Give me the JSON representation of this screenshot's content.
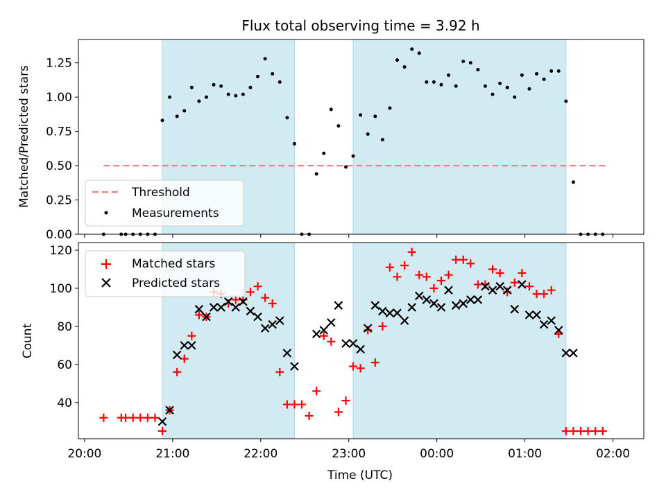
{
  "chart_data": [
    {
      "type": "scatter",
      "title": "Flux total observing time = 3.92 h",
      "xlabel": "",
      "ylabel": "Matched/Predicted stars",
      "ylim": [
        0,
        1.42
      ],
      "xlim_hours": [
        19.93,
        26.35
      ],
      "x_ticks": [
        "20:00",
        "21:00",
        "22:00",
        "23:00",
        "00:00",
        "01:00",
        "02:00"
      ],
      "y_ticks": [
        "0.00",
        "0.25",
        "0.50",
        "0.75",
        "1.00",
        "1.25"
      ],
      "shaded_spans": [
        {
          "start": "20:53",
          "end": "22:23"
        },
        {
          "start": "23:03",
          "end": "01:28"
        }
      ],
      "shade_color": "#add8e6",
      "threshold": {
        "name": "Threshold",
        "value": 0.5,
        "x_start": "20:13",
        "x_end": "01:56",
        "color": "#f08080"
      },
      "legend": {
        "position": "lower-left",
        "entries": [
          "Threshold",
          "Measurements"
        ]
      },
      "series": [
        {
          "name": "Measurements",
          "color": "#000000",
          "marker": "dot",
          "x": [
            "20:13",
            "20:25",
            "20:28",
            "20:33",
            "20:38",
            "20:43",
            "20:48",
            "20:53",
            "20:58",
            "21:03",
            "21:08",
            "21:13",
            "21:18",
            "21:23",
            "21:28",
            "21:33",
            "21:38",
            "21:43",
            "21:48",
            "21:53",
            "21:58",
            "22:03",
            "22:08",
            "22:13",
            "22:18",
            "22:23",
            "22:28",
            "22:33",
            "22:38",
            "22:43",
            "22:48",
            "22:53",
            "22:58",
            "23:03",
            "23:08",
            "23:13",
            "23:18",
            "23:23",
            "23:28",
            "23:33",
            "23:38",
            "23:43",
            "23:48",
            "23:53",
            "23:58",
            "00:03",
            "00:08",
            "00:13",
            "00:18",
            "00:23",
            "00:28",
            "00:33",
            "00:38",
            "00:43",
            "00:48",
            "00:53",
            "00:58",
            "01:03",
            "01:08",
            "01:13",
            "01:18",
            "01:23",
            "01:28",
            "01:33",
            "01:38",
            "01:43",
            "01:48",
            "01:53"
          ],
          "y": [
            0.0,
            0.0,
            0.0,
            0.0,
            0.0,
            0.0,
            0.0,
            0.83,
            1.0,
            0.86,
            0.9,
            1.07,
            0.97,
            1.0,
            1.09,
            1.08,
            1.02,
            1.01,
            1.02,
            1.07,
            1.15,
            1.28,
            1.17,
            1.11,
            0.85,
            0.66,
            0.0,
            0.0,
            0.44,
            0.59,
            0.91,
            0.79,
            0.49,
            0.57,
            0.87,
            0.73,
            0.86,
            0.69,
            0.92,
            1.27,
            1.22,
            1.35,
            1.32,
            1.11,
            1.11,
            1.09,
            1.16,
            1.08,
            1.26,
            1.25,
            1.2,
            1.08,
            1.02,
            1.1,
            1.07,
            1.0,
            1.16,
            1.06,
            1.17,
            1.13,
            1.19,
            1.19,
            0.97,
            0.38,
            0.0,
            0.0,
            0.0,
            0.0
          ]
        }
      ]
    },
    {
      "type": "scatter",
      "title": "",
      "xlabel": "Time (UTC)",
      "ylabel": "Count",
      "ylim": [
        21,
        124
      ],
      "xlim_hours": [
        19.93,
        26.35
      ],
      "x_ticks": [
        "20:00",
        "21:00",
        "22:00",
        "23:00",
        "00:00",
        "01:00",
        "02:00"
      ],
      "y_ticks": [
        "40",
        "60",
        "80",
        "100",
        "120"
      ],
      "shaded_spans": [
        {
          "start": "20:53",
          "end": "22:23"
        },
        {
          "start": "23:03",
          "end": "01:28"
        }
      ],
      "shade_color": "#add8e6",
      "legend": {
        "position": "upper-left",
        "entries": [
          "Matched stars",
          "Predicted stars"
        ]
      },
      "series": [
        {
          "name": "Matched stars",
          "color": "#ff0000",
          "marker": "plus",
          "x": [
            "20:13",
            "20:25",
            "20:28",
            "20:33",
            "20:38",
            "20:43",
            "20:48",
            "20:53",
            "20:58",
            "21:03",
            "21:08",
            "21:13",
            "21:18",
            "21:23",
            "21:28",
            "21:33",
            "21:38",
            "21:43",
            "21:48",
            "21:53",
            "21:58",
            "22:03",
            "22:08",
            "22:13",
            "22:18",
            "22:23",
            "22:28",
            "22:33",
            "22:38",
            "22:43",
            "22:48",
            "22:53",
            "22:58",
            "23:03",
            "23:08",
            "23:13",
            "23:18",
            "23:23",
            "23:28",
            "23:33",
            "23:38",
            "23:43",
            "23:48",
            "23:53",
            "23:58",
            "00:03",
            "00:08",
            "00:13",
            "00:18",
            "00:23",
            "00:28",
            "00:33",
            "00:38",
            "00:43",
            "00:48",
            "00:53",
            "00:58",
            "01:03",
            "01:08",
            "01:13",
            "01:18",
            "01:23",
            "01:28",
            "01:33",
            "01:38",
            "01:43",
            "01:48",
            "01:53"
          ],
          "y": [
            32,
            32,
            32,
            32,
            32,
            32,
            32,
            25,
            36,
            56,
            63,
            75,
            86,
            85,
            98,
            97,
            92,
            94,
            94,
            98,
            101,
            95,
            92,
            56,
            39,
            39,
            39,
            33,
            46,
            75,
            72,
            35,
            41,
            59,
            58,
            78,
            61,
            80,
            111,
            106,
            112,
            119,
            107,
            106,
            100,
            104,
            107,
            115,
            115,
            113,
            102,
            102,
            110,
            108,
            98,
            103,
            108,
            101,
            97,
            97,
            99,
            76,
            25,
            25,
            25,
            25,
            25,
            25
          ]
        },
        {
          "name": "Predicted stars",
          "color": "#000000",
          "marker": "x",
          "x": [
            "20:53",
            "20:58",
            "21:03",
            "21:08",
            "21:13",
            "21:18",
            "21:23",
            "21:28",
            "21:33",
            "21:38",
            "21:43",
            "21:48",
            "21:53",
            "21:58",
            "22:03",
            "22:08",
            "22:13",
            "22:18",
            "22:23",
            "22:38",
            "22:43",
            "22:48",
            "22:53",
            "22:58",
            "23:03",
            "23:08",
            "23:13",
            "23:18",
            "23:23",
            "23:28",
            "23:33",
            "23:38",
            "23:43",
            "23:48",
            "23:53",
            "23:58",
            "00:03",
            "00:08",
            "00:13",
            "00:18",
            "00:23",
            "00:28",
            "00:33",
            "00:38",
            "00:43",
            "00:48",
            "00:53",
            "00:58",
            "01:03",
            "01:08",
            "01:13",
            "01:18",
            "01:23",
            "01:28",
            "01:33"
          ],
          "y": [
            30,
            36,
            65,
            70,
            70,
            89,
            85,
            90,
            90,
            93,
            90,
            93,
            88,
            85,
            79,
            81,
            83,
            66,
            59,
            76,
            78,
            82,
            91,
            71,
            71,
            68,
            79,
            91,
            88,
            87,
            87,
            83,
            90,
            96,
            94,
            92,
            90,
            99,
            91,
            92,
            94,
            94,
            101,
            99,
            101,
            99,
            89,
            102,
            86,
            86,
            81,
            83,
            78,
            66,
            66
          ]
        }
      ]
    }
  ]
}
